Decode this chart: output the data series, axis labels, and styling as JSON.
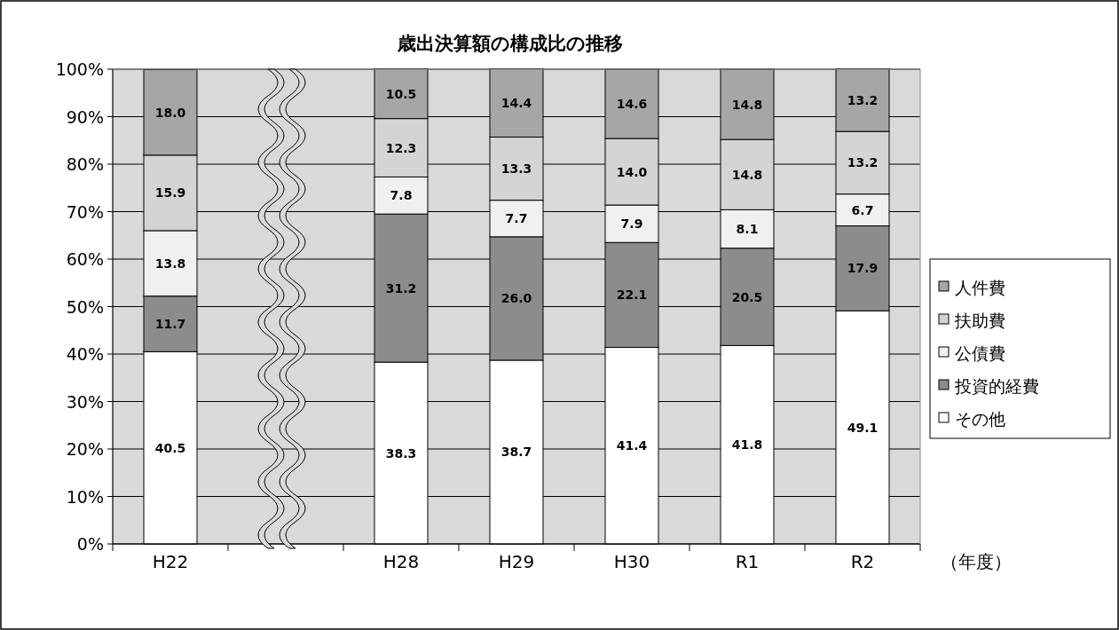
{
  "chart_data": {
    "type": "bar",
    "stacked": true,
    "title": "歳出決算額の構成比の推移",
    "xlabel": "（年度）",
    "categories": [
      "H22",
      null,
      "H28",
      "H29",
      "H30",
      "R1",
      "R2"
    ],
    "ylim": [
      0,
      100
    ],
    "yticks": [
      {
        "value": 0,
        "label": "0%"
      },
      {
        "value": 10,
        "label": "10%"
      },
      {
        "value": 20,
        "label": "20%"
      },
      {
        "value": 30,
        "label": "30%"
      },
      {
        "value": 40,
        "label": "40%"
      },
      {
        "value": 50,
        "label": "50%"
      },
      {
        "value": 60,
        "label": "60%"
      },
      {
        "value": 70,
        "label": "70%"
      },
      {
        "value": 80,
        "label": "80%"
      },
      {
        "value": 90,
        "label": "90%"
      },
      {
        "value": 100,
        "label": "100%"
      }
    ],
    "grid": "y",
    "legend": "right",
    "series": [
      {
        "name": "その他",
        "color": "#ffffff",
        "values": [
          40.5,
          null,
          38.3,
          38.7,
          41.4,
          41.8,
          49.1
        ],
        "value_labels": [
          "40.5",
          null,
          "38.3",
          "38.7",
          "41.4",
          "41.8",
          "49.1"
        ]
      },
      {
        "name": "投資的経費",
        "color": "#8c8c8c",
        "values": [
          11.7,
          null,
          31.2,
          26.0,
          22.1,
          20.5,
          17.9
        ],
        "value_labels": [
          "11.7",
          null,
          "31.2",
          "26.0",
          "22.1",
          "20.5",
          "17.9"
        ]
      },
      {
        "name": "公債費",
        "color": "#f0f0f0",
        "values": [
          13.8,
          null,
          7.8,
          7.7,
          7.9,
          8.1,
          6.7
        ],
        "value_labels": [
          "13.8",
          null,
          "7.8",
          "7.7",
          "7.9",
          "8.1",
          "6.7"
        ]
      },
      {
        "name": "扶助費",
        "color": "#d4d4d4",
        "values": [
          15.9,
          null,
          12.3,
          13.3,
          14.0,
          14.8,
          13.2
        ],
        "value_labels": [
          "15.9",
          null,
          "12.3",
          "13.3",
          "14.0",
          "14.8",
          "13.2"
        ]
      },
      {
        "name": "人件費",
        "color": "#a6a6a6",
        "values": [
          18.0,
          null,
          10.5,
          14.4,
          14.6,
          14.8,
          13.2
        ],
        "value_labels": [
          "18.0",
          null,
          "10.5",
          "14.4",
          "14.6",
          "14.8",
          "13.2"
        ]
      }
    ]
  }
}
